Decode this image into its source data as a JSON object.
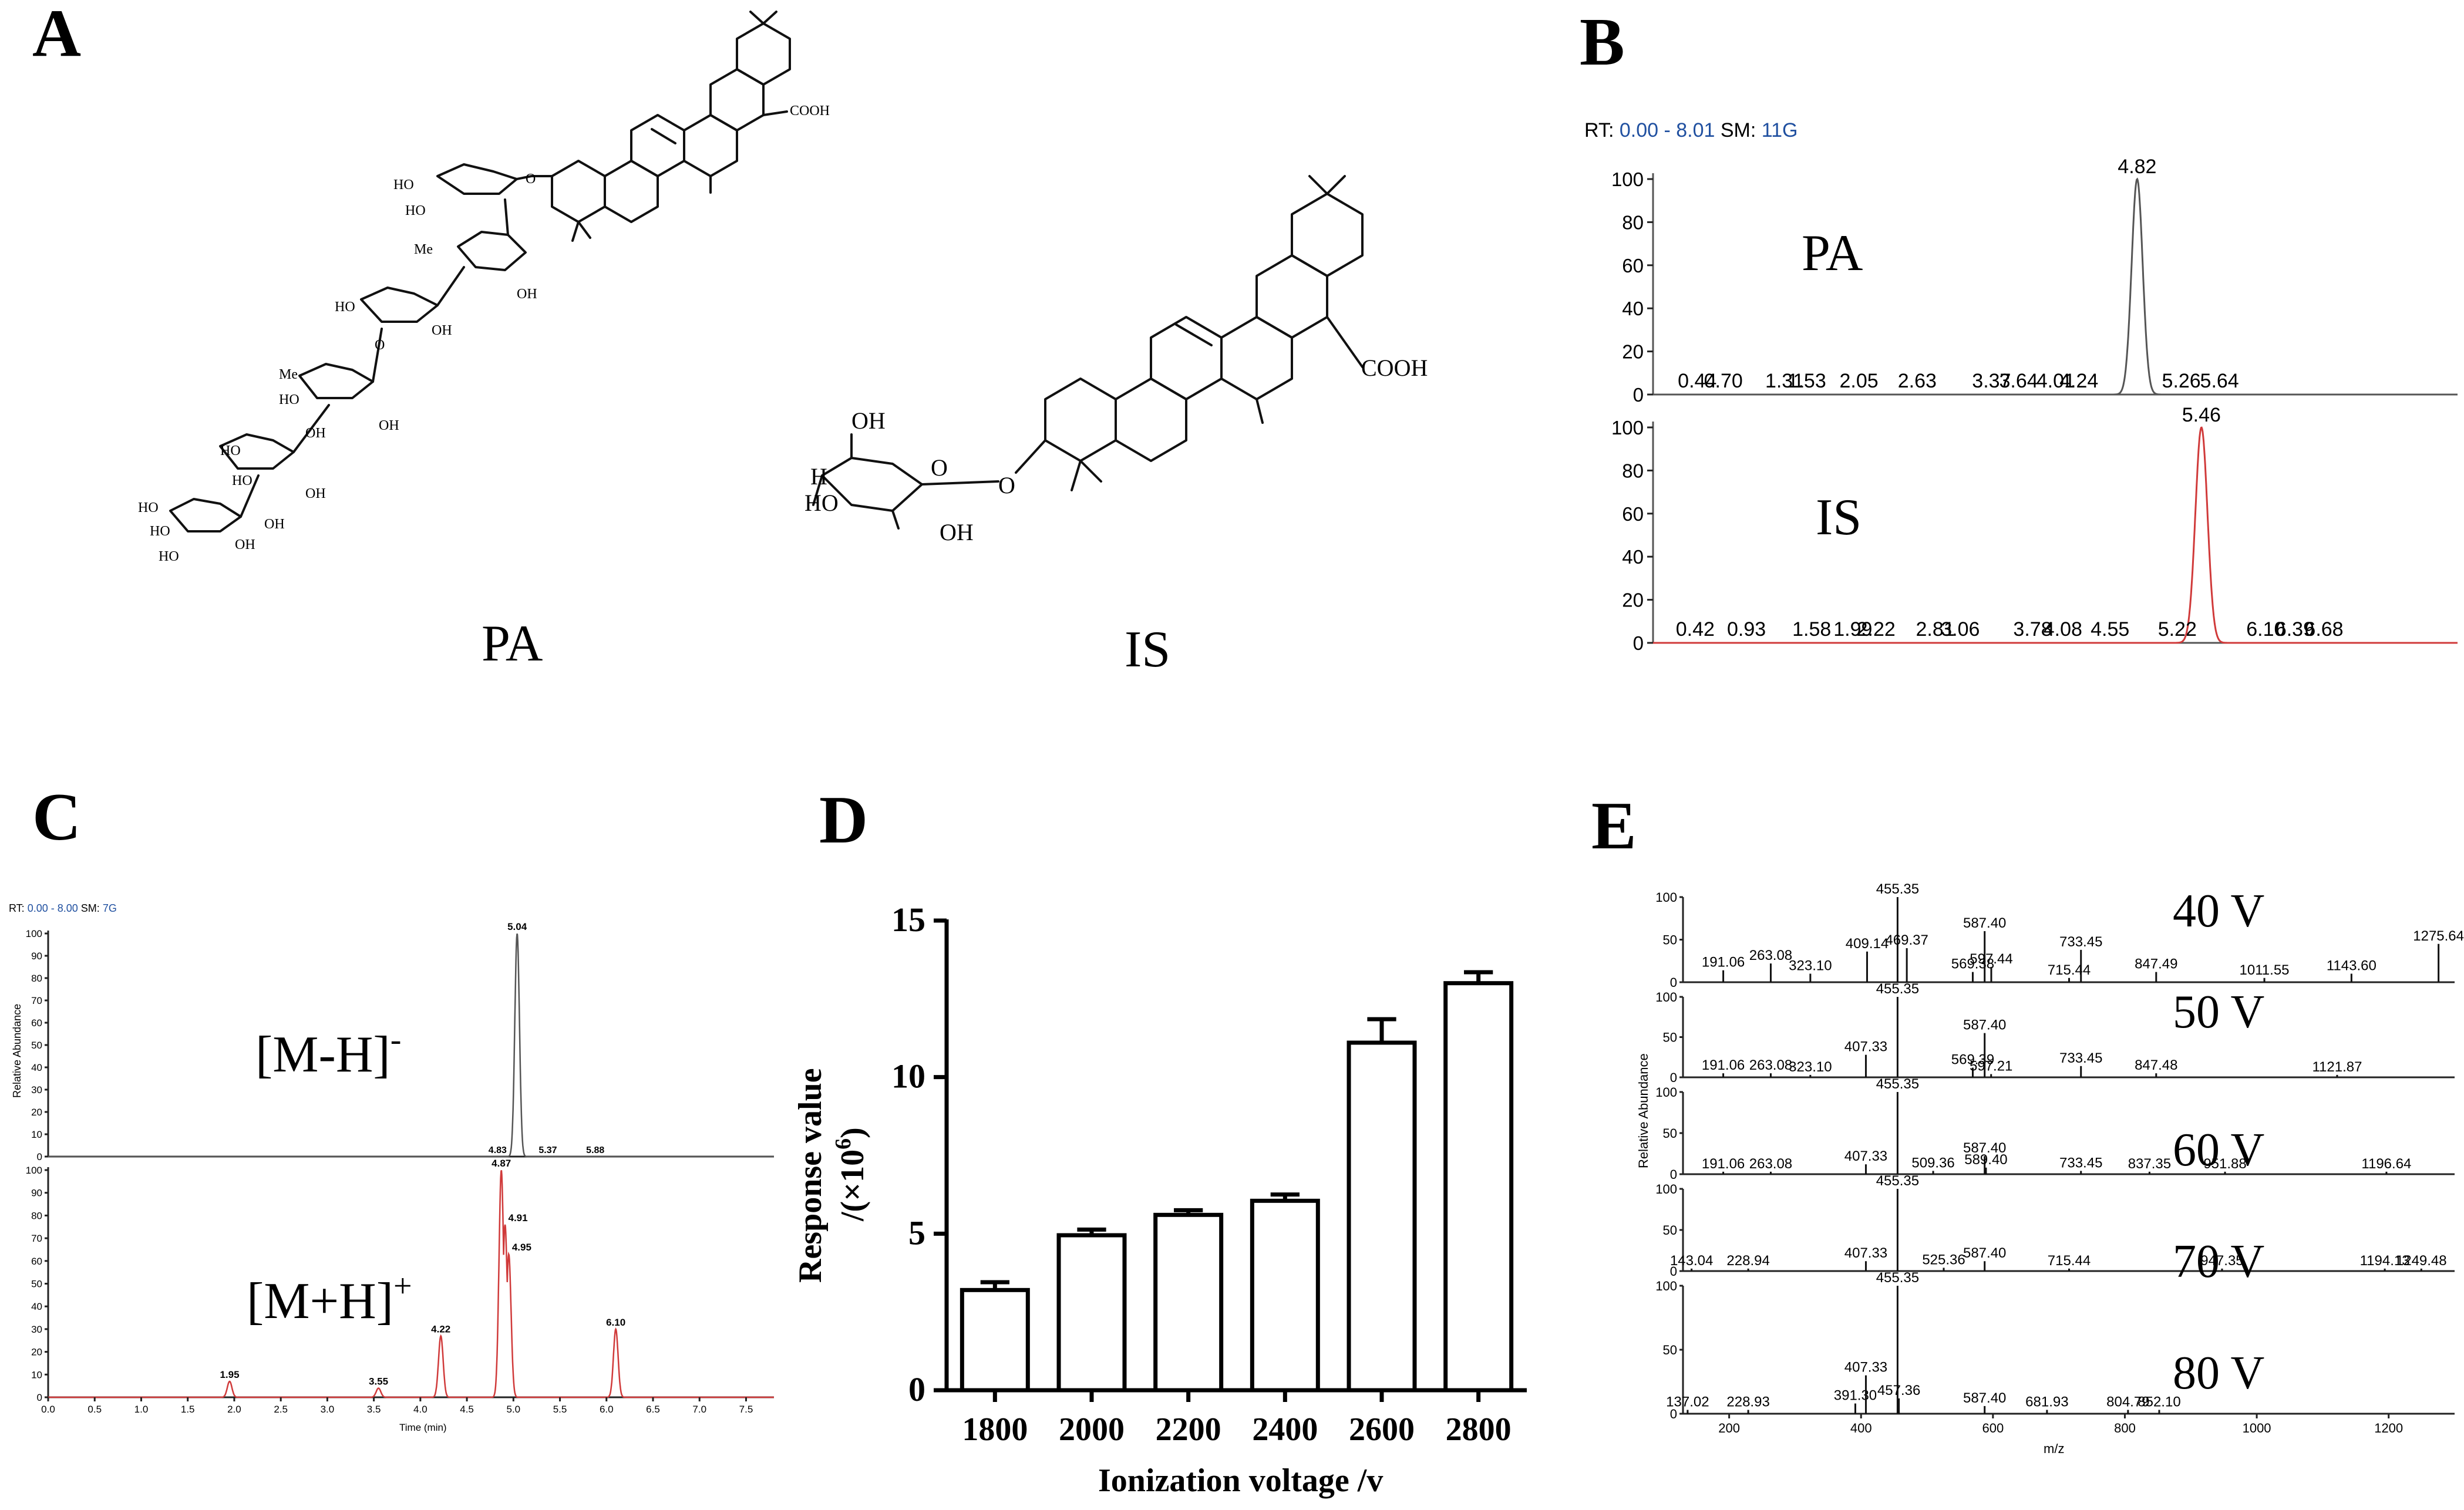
{
  "panels": {
    "A": {
      "label": "A",
      "left_name": "PA",
      "right_name": "IS"
    },
    "B": {
      "label": "B"
    },
    "C": {
      "label": "C"
    },
    "D": {
      "label": "D"
    },
    "E": {
      "label": "E"
    }
  },
  "structures": {
    "pa_labels": [
      "COOH",
      "HO",
      "HO",
      "O",
      "Me",
      "OH",
      "HO",
      "OH",
      "O",
      "Me",
      "OH",
      "HO",
      "OH",
      "HO",
      "HO",
      "OH",
      "OH",
      "HO",
      "HO",
      "OH",
      "HO"
    ],
    "is_labels": [
      "COOH",
      "OH",
      "HO",
      "H",
      "OH",
      "O",
      "O"
    ]
  },
  "chart_data": [
    {
      "type": "line",
      "panel": "B",
      "header": {
        "rt_prefix": "RT:",
        "rt_range": "0.00 - 8.01",
        "sm_prefix": "SM:",
        "sm_value": "11G"
      },
      "yticks": [
        0,
        20,
        40,
        60,
        80,
        100
      ],
      "xlim": [
        0,
        8.01
      ],
      "ylim": [
        0,
        100
      ],
      "series": [
        {
          "name": "PA",
          "color": "#555555",
          "peak": 4.82,
          "peak_label": "4.82",
          "width": 0.055,
          "annotations": [
            "0.44",
            "0.70",
            "1.31",
            "1.53",
            "2.05",
            "2.63",
            "3.37",
            "3.64",
            "4.01",
            "4.24",
            "5.26",
            "5.64"
          ]
        },
        {
          "name": "IS",
          "color": "#d03a3a",
          "peak": 5.46,
          "peak_label": "5.46",
          "width": 0.06,
          "annotations": [
            "0.42",
            "0.93",
            "1.58",
            "1.99",
            "2.22",
            "2.81",
            "3.06",
            "3.78",
            "4.08",
            "4.55",
            "5.22",
            "6.10",
            "6.39",
            "6.68"
          ]
        }
      ]
    },
    {
      "type": "line",
      "panel": "C",
      "header": {
        "rt_prefix": "RT:",
        "rt_range": "0.00 - 8.00",
        "sm_prefix": "SM:",
        "sm_value": "7G"
      },
      "ylabel": "Relative Abundance",
      "xlabel": "Time (min)",
      "xlim": [
        0,
        7.8
      ],
      "xticks": [
        "0.0",
        "0.5",
        "1.0",
        "1.5",
        "2.0",
        "2.5",
        "3.0",
        "3.5",
        "4.0",
        "4.5",
        "5.0",
        "5.5",
        "6.0",
        "6.5",
        "7.0",
        "7.5"
      ],
      "yticks_top": [
        0,
        10,
        20,
        30,
        40,
        50,
        60,
        70,
        80,
        90,
        100
      ],
      "yticks_bottom": [
        0,
        10,
        20,
        30,
        40,
        50,
        60,
        70,
        80,
        90,
        100
      ],
      "series": [
        {
          "name": "[M-H]",
          "name_sup": "-",
          "color": "#555555",
          "peaks": [
            {
              "x": 5.04,
              "y": 100,
              "label": "5.04"
            }
          ],
          "minor_labels": [
            {
              "x": 4.83,
              "label": "4.83"
            },
            {
              "x": 5.37,
              "label": "5.37"
            },
            {
              "x": 5.88,
              "label": "5.88"
            }
          ]
        },
        {
          "name": "[M+H]",
          "name_sup": "+",
          "color": "#d03a3a",
          "peaks": [
            {
              "x": 1.95,
              "y": 7,
              "label": "1.95"
            },
            {
              "x": 3.55,
              "y": 4,
              "label": "3.55"
            },
            {
              "x": 4.22,
              "y": 27,
              "label": "4.22"
            },
            {
              "x": 4.87,
              "y": 100,
              "label": "4.87"
            },
            {
              "x": 4.91,
              "y": 76,
              "label": "4.91"
            },
            {
              "x": 4.95,
              "y": 63,
              "label": "4.95"
            },
            {
              "x": 6.1,
              "y": 30,
              "label": "6.10"
            }
          ]
        }
      ]
    },
    {
      "type": "bar",
      "panel": "D",
      "categories": [
        "1800",
        "2000",
        "2200",
        "2400",
        "2600",
        "2800"
      ],
      "values": [
        3.2,
        4.95,
        5.6,
        6.05,
        11.1,
        13.0
      ],
      "errors": [
        0.25,
        0.18,
        0.15,
        0.2,
        0.75,
        0.35
      ],
      "ylim": [
        0,
        15
      ],
      "yticks": [
        0,
        5,
        10,
        15
      ],
      "xlabel": "Ionization voltage /v",
      "ylabel_line1": "Response value",
      "ylabel_line2_prefix": "/(×10",
      "ylabel_line2_sup": "6",
      "ylabel_line2_suffix": ")"
    },
    {
      "type": "bar",
      "panel": "E",
      "ylabel": "Relative Abundance",
      "xlabel": "m/z",
      "xlim": [
        130,
        1300
      ],
      "xticks": [
        "200",
        "400",
        "600",
        "800",
        "1000",
        "1200"
      ],
      "yticks": [
        0,
        50,
        100
      ],
      "spectra": [
        {
          "name": "40 V",
          "peaks": [
            {
              "mz": 191.06,
              "y": 14,
              "label": "191.06"
            },
            {
              "mz": 263.08,
              "y": 22,
              "label": "263.08"
            },
            {
              "mz": 323.1,
              "y": 10,
              "label": "323.10"
            },
            {
              "mz": 409.14,
              "y": 36,
              "label": "409.14"
            },
            {
              "mz": 455.35,
              "y": 100,
              "label": "455.35"
            },
            {
              "mz": 469.37,
              "y": 40,
              "label": "469.37"
            },
            {
              "mz": 569.38,
              "y": 12,
              "label": "569.38"
            },
            {
              "mz": 587.4,
              "y": 60,
              "label": "587.40"
            },
            {
              "mz": 597.44,
              "y": 18,
              "label": "597.44"
            },
            {
              "mz": 715.44,
              "y": 5,
              "label": "715.44"
            },
            {
              "mz": 733.45,
              "y": 38,
              "label": "733.45"
            },
            {
              "mz": 847.49,
              "y": 12,
              "label": "847.49"
            },
            {
              "mz": 1011.55,
              "y": 5,
              "label": "1011.55"
            },
            {
              "mz": 1143.6,
              "y": 10,
              "label": "1143.60"
            },
            {
              "mz": 1275.64,
              "y": 45,
              "label": "1275.64"
            }
          ]
        },
        {
          "name": "50 V",
          "peaks": [
            {
              "mz": 191.06,
              "y": 5,
              "label": "191.06"
            },
            {
              "mz": 263.08,
              "y": 5,
              "label": "263.08"
            },
            {
              "mz": 323.1,
              "y": 3,
              "label": "323.10"
            },
            {
              "mz": 407.33,
              "y": 28,
              "label": "407.33"
            },
            {
              "mz": 455.35,
              "y": 100,
              "label": "455.35"
            },
            {
              "mz": 569.39,
              "y": 12,
              "label": "569.39"
            },
            {
              "mz": 587.4,
              "y": 55,
              "label": "587.40"
            },
            {
              "mz": 597.21,
              "y": 4,
              "label": "597.21"
            },
            {
              "mz": 733.45,
              "y": 14,
              "label": "733.45"
            },
            {
              "mz": 847.48,
              "y": 5,
              "label": "847.48"
            },
            {
              "mz": 1121.87,
              "y": 3,
              "label": "1121.87"
            }
          ]
        },
        {
          "name": "60 V",
          "peaks": [
            {
              "mz": 191.06,
              "y": 3,
              "label": "191.06"
            },
            {
              "mz": 263.08,
              "y": 3,
              "label": "263.08"
            },
            {
              "mz": 407.33,
              "y": 12,
              "label": "407.33"
            },
            {
              "mz": 455.35,
              "y": 100,
              "label": "455.35"
            },
            {
              "mz": 509.36,
              "y": 4,
              "label": "509.36"
            },
            {
              "mz": 587.4,
              "y": 22,
              "label": "587.40"
            },
            {
              "mz": 589.4,
              "y": 8,
              "label": "589.40"
            },
            {
              "mz": 733.45,
              "y": 4,
              "label": "733.45"
            },
            {
              "mz": 837.35,
              "y": 3,
              "label": "837.35"
            },
            {
              "mz": 951.88,
              "y": 3,
              "label": "951.88"
            },
            {
              "mz": 1196.64,
              "y": 3,
              "label": "1196.64"
            }
          ]
        },
        {
          "name": "70 V",
          "peaks": [
            {
              "mz": 143.04,
              "y": 3,
              "label": "143.04"
            },
            {
              "mz": 228.94,
              "y": 3,
              "label": "228.94"
            },
            {
              "mz": 407.33,
              "y": 12,
              "label": "407.33"
            },
            {
              "mz": 455.35,
              "y": 100,
              "label": "455.35"
            },
            {
              "mz": 525.36,
              "y": 4,
              "label": "525.36"
            },
            {
              "mz": 587.4,
              "y": 12,
              "label": "587.40"
            },
            {
              "mz": 715.44,
              "y": 3,
              "label": "715.44"
            },
            {
              "mz": 947.35,
              "y": 3,
              "label": "947.35"
            },
            {
              "mz": 1194.13,
              "y": 3,
              "label": "1194.13"
            },
            {
              "mz": 1249.48,
              "y": 3,
              "label": "1249.48"
            }
          ]
        },
        {
          "name": "80 V",
          "peaks": [
            {
              "mz": 137.02,
              "y": 3,
              "label": "137.02"
            },
            {
              "mz": 228.93,
              "y": 3,
              "label": "228.93"
            },
            {
              "mz": 391.3,
              "y": 8,
              "label": "391.30"
            },
            {
              "mz": 407.33,
              "y": 30,
              "label": "407.33"
            },
            {
              "mz": 455.35,
              "y": 100,
              "label": "455.35"
            },
            {
              "mz": 457.36,
              "y": 12,
              "label": "457.36"
            },
            {
              "mz": 587.4,
              "y": 6,
              "label": "587.40"
            },
            {
              "mz": 681.93,
              "y": 3,
              "label": "681.93"
            },
            {
              "mz": 804.79,
              "y": 3,
              "label": "804.79"
            },
            {
              "mz": 852.1,
              "y": 3,
              "label": "852.10"
            }
          ]
        }
      ]
    }
  ]
}
